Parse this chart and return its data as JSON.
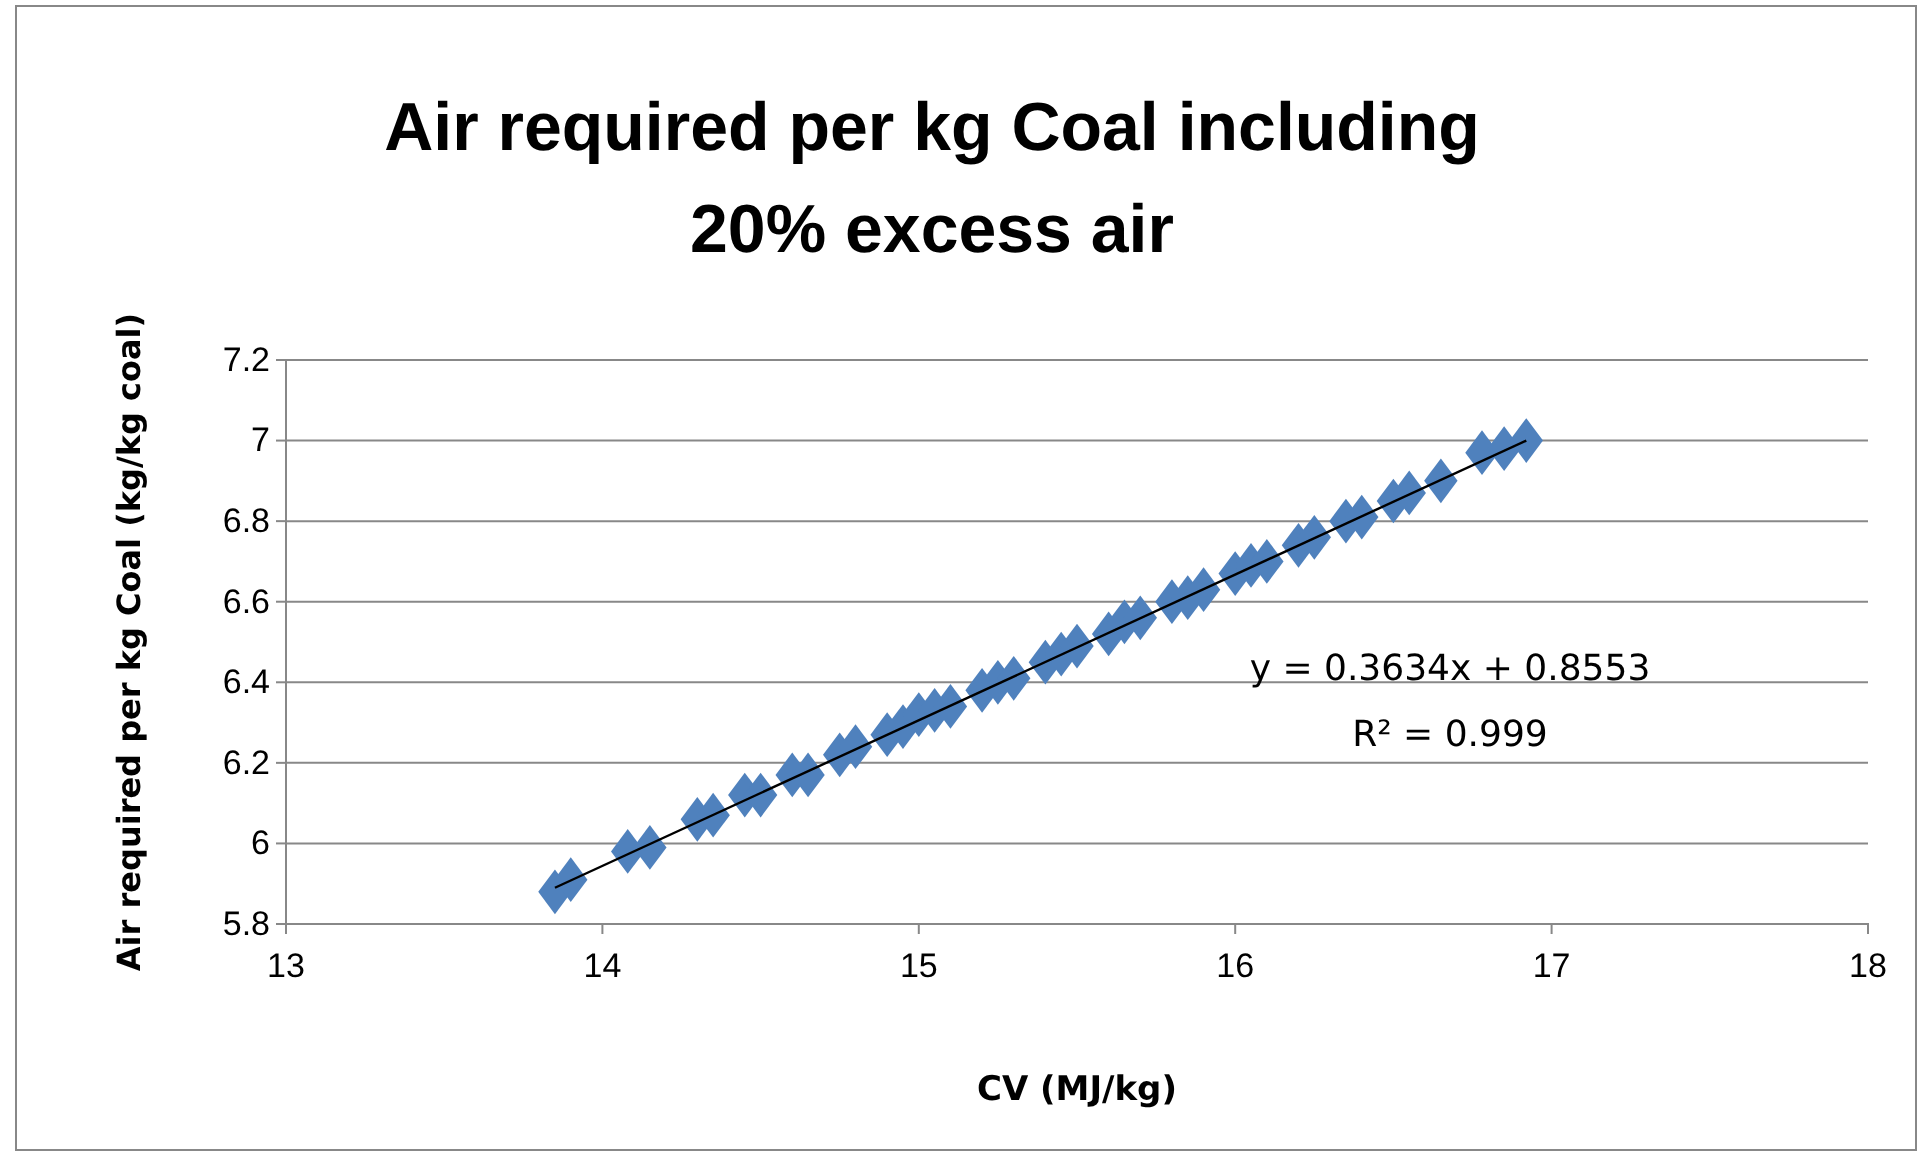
{
  "chart_data": {
    "type": "scatter",
    "title": "Air required per kg Coal including 20% excess air",
    "xlabel": "CV (MJ/kg)",
    "ylabel": "Air required per kg Coal  (kg/kg coal)",
    "xlim": [
      13,
      18
    ],
    "xticks": [
      13,
      14,
      15,
      16,
      17,
      18
    ],
    "ylim": [
      5.8,
      7.2
    ],
    "yticks": [
      5.8,
      6,
      6.2,
      6.4,
      6.6,
      6.8,
      7,
      7.2
    ],
    "grid": "y",
    "marker": "diamond",
    "series": [
      {
        "color": "#4f81bd",
        "x": [
          13.85,
          13.9,
          14.08,
          14.15,
          14.3,
          14.35,
          14.45,
          14.5,
          14.6,
          14.65,
          14.75,
          14.8,
          14.9,
          14.95,
          15.0,
          15.05,
          15.1,
          15.2,
          15.25,
          15.3,
          15.4,
          15.45,
          15.5,
          15.6,
          15.65,
          15.7,
          15.8,
          15.85,
          15.9,
          16.0,
          16.05,
          16.1,
          16.2,
          16.25,
          16.35,
          16.4,
          16.5,
          16.55,
          16.65,
          16.78,
          16.85,
          16.92
        ],
        "values": [
          5.88,
          5.91,
          5.98,
          5.99,
          6.06,
          6.07,
          6.12,
          6.12,
          6.17,
          6.17,
          6.22,
          6.24,
          6.27,
          6.29,
          6.32,
          6.33,
          6.34,
          6.38,
          6.4,
          6.41,
          6.45,
          6.47,
          6.49,
          6.52,
          6.55,
          6.56,
          6.6,
          6.61,
          6.63,
          6.67,
          6.69,
          6.7,
          6.74,
          6.76,
          6.8,
          6.81,
          6.85,
          6.87,
          6.9,
          6.97,
          6.98,
          7.0
        ]
      },
      {
        "type": "line",
        "marker": "none",
        "color": "#000000",
        "x": [
          13.85,
          16.92
        ],
        "values": [
          5.89,
          7.0
        ]
      }
    ],
    "annotations": [
      "y = 0.3634x + 0.8553",
      "R² = 0.999"
    ]
  }
}
